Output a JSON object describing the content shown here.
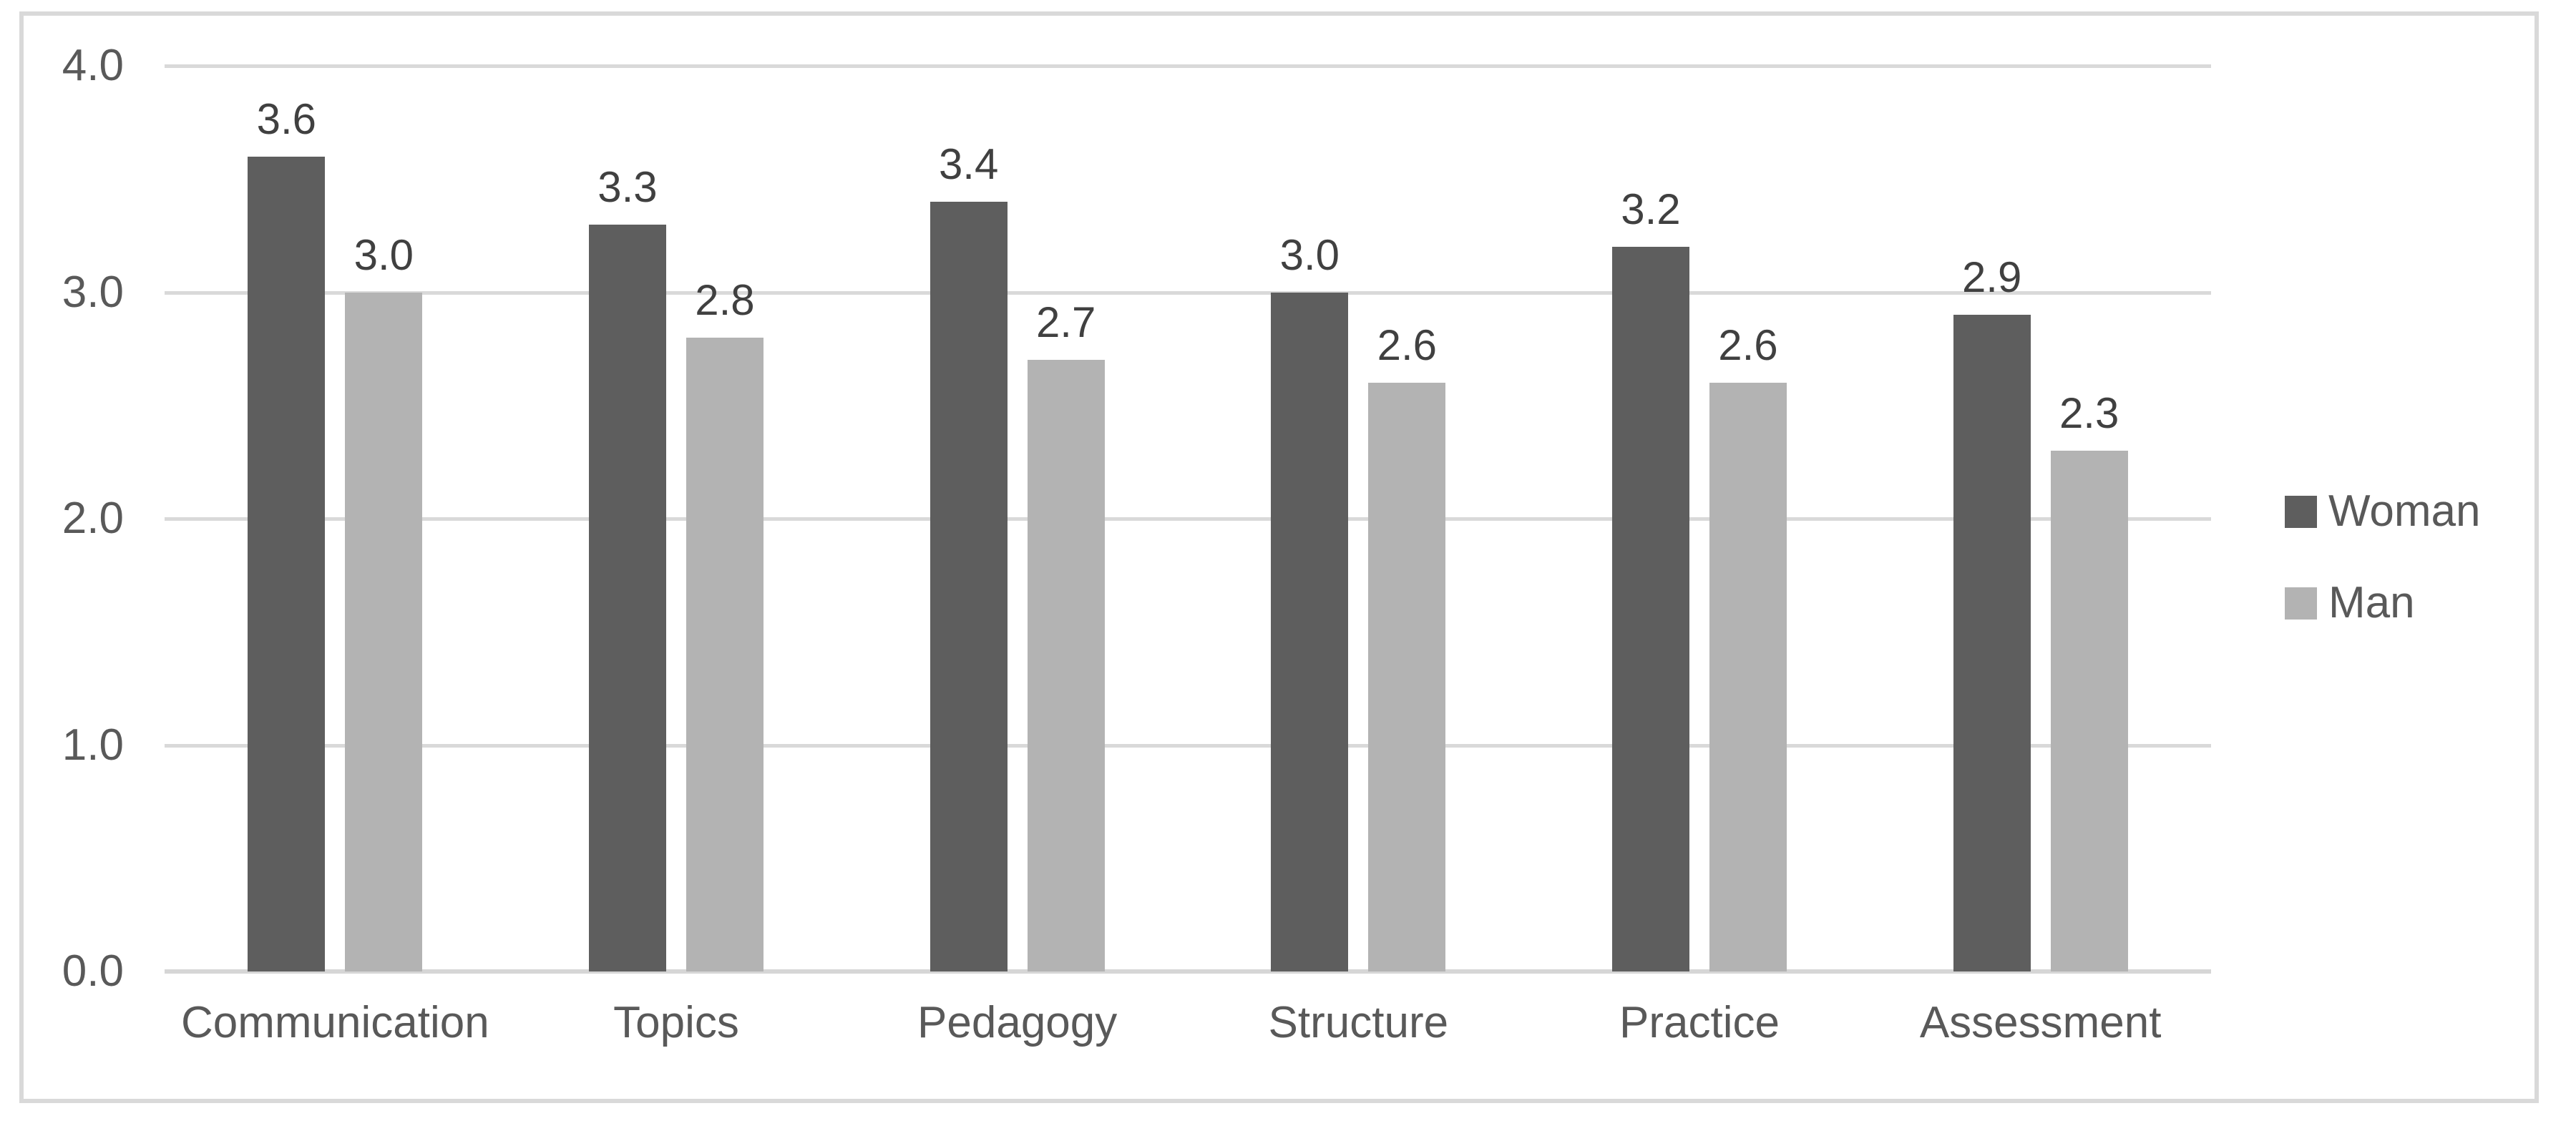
{
  "chart_data": {
    "type": "bar",
    "title": "",
    "xlabel": "",
    "ylabel": "",
    "categories": [
      "Communication",
      "Topics",
      "Pedagogy",
      "Structure",
      "Practice",
      "Assessment"
    ],
    "series": [
      {
        "name": "Woman",
        "color": "#5E5E5E",
        "values": [
          3.6,
          3.3,
          3.4,
          3.0,
          3.2,
          2.9
        ]
      },
      {
        "name": "Man",
        "color": "#B3B3B3",
        "values": [
          3.0,
          2.8,
          2.7,
          2.6,
          2.6,
          2.3
        ]
      }
    ],
    "ylim": [
      0,
      4
    ],
    "ytick_labels": [
      "4.0",
      "3.0",
      "2.0",
      "1.0",
      "0.0"
    ],
    "ytick_values": [
      4.0,
      3.0,
      2.0,
      1.0,
      0.0
    ],
    "grid": true,
    "data_labels": true,
    "data_label_decimals": 1,
    "legend_position": "right"
  },
  "style": {
    "gridline_color": "#D9D9D9",
    "axis_line_color": "#D6D6D6",
    "frame_border_color": "#D9D9D9",
    "tick_label_color": "#595959",
    "category_label_color": "#595959",
    "data_label_color": "#404040",
    "legend_text_color": "#595959",
    "background_color": "#FFFFFF"
  }
}
